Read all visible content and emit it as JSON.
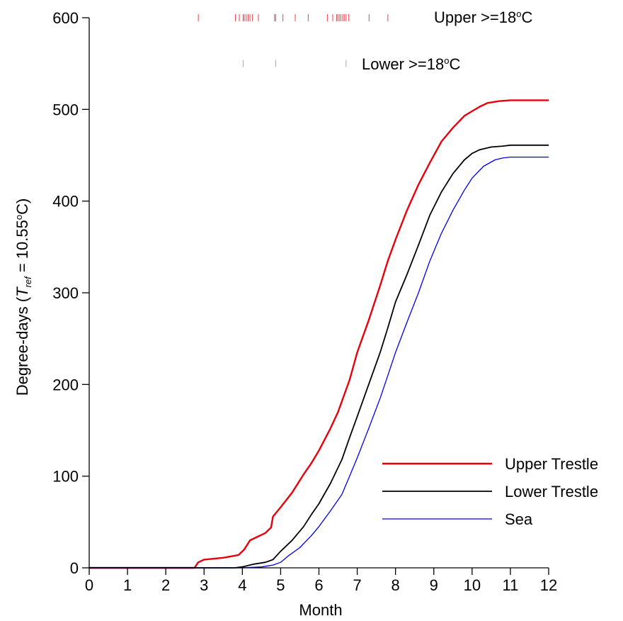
{
  "chart_data": {
    "type": "line",
    "xlabel": "Month",
    "ylabel_prefix": "Degree-days (",
    "ylabel_t": "T",
    "ylabel_sub": "ref",
    "ylabel_eq": " = 10.55",
    "ylabel_sup": "o",
    "ylabel_unit": "C)",
    "xlim": [
      0,
      12
    ],
    "ylim": [
      0,
      600
    ],
    "xticks": [
      "0",
      "1",
      "2",
      "3",
      "4",
      "5",
      "6",
      "7",
      "8",
      "9",
      "10",
      "11",
      "12"
    ],
    "yticks": [
      "0",
      "100",
      "200",
      "300",
      "400",
      "500",
      "600"
    ],
    "legend_position": "lower-right",
    "series": [
      {
        "name": "Upper Trestle",
        "color": "#e8000b",
        "x": [
          0,
          2.75,
          2.85,
          3.0,
          3.5,
          3.9,
          4.05,
          4.2,
          4.4,
          4.6,
          4.75,
          4.8,
          5.0,
          5.3,
          5.6,
          5.8,
          6.0,
          6.3,
          6.5,
          6.8,
          7.0,
          7.3,
          7.6,
          7.8,
          8.0,
          8.3,
          8.6,
          8.9,
          9.2,
          9.5,
          9.8,
          10.0,
          10.2,
          10.4,
          10.7,
          11.0,
          11.5,
          12.0
        ],
        "y": [
          0,
          0,
          6,
          9,
          11,
          14,
          20,
          30,
          34,
          38,
          44,
          56,
          66,
          82,
          102,
          114,
          128,
          152,
          170,
          205,
          235,
          270,
          308,
          335,
          358,
          390,
          418,
          442,
          465,
          480,
          493,
          498,
          503,
          507,
          509,
          510,
          510,
          510
        ]
      },
      {
        "name": "Lower Trestle",
        "color": "#000000",
        "x": [
          0,
          3.8,
          4.0,
          4.3,
          4.6,
          4.8,
          5.0,
          5.3,
          5.6,
          5.8,
          6.0,
          6.3,
          6.6,
          6.8,
          7.0,
          7.3,
          7.6,
          7.8,
          8.0,
          8.3,
          8.6,
          8.9,
          9.2,
          9.5,
          9.8,
          10.0,
          10.2,
          10.5,
          10.8,
          11.0,
          11.5,
          12.0
        ],
        "y": [
          0,
          0,
          1,
          4,
          6,
          9,
          18,
          30,
          45,
          58,
          70,
          92,
          118,
          142,
          165,
          200,
          235,
          262,
          290,
          320,
          352,
          385,
          410,
          430,
          445,
          452,
          456,
          459,
          460,
          461,
          461,
          461
        ]
      },
      {
        "name": "Sea",
        "color": "#0000ee",
        "x": [
          0,
          4.0,
          4.5,
          4.8,
          5.0,
          5.2,
          5.5,
          5.8,
          6.0,
          6.3,
          6.6,
          6.8,
          7.0,
          7.3,
          7.6,
          7.8,
          8.0,
          8.3,
          8.6,
          8.9,
          9.2,
          9.5,
          9.8,
          10.0,
          10.3,
          10.6,
          10.8,
          11.0,
          11.5,
          12.0
        ],
        "y": [
          0,
          0,
          1,
          3,
          6,
          13,
          22,
          35,
          45,
          62,
          80,
          100,
          120,
          152,
          185,
          210,
          235,
          268,
          300,
          335,
          365,
          390,
          412,
          425,
          438,
          445,
          447,
          448,
          448,
          448
        ]
      }
    ],
    "markers": [
      {
        "label": "Upper >=18",
        "label_sup": "o",
        "label_unit": "C",
        "color": "#e8000b",
        "y": 600,
        "events": [
          2.85,
          3.82,
          3.92,
          4.02,
          4.05,
          4.1,
          4.15,
          4.2,
          4.26,
          4.42,
          4.84,
          4.87,
          5.06,
          5.38,
          5.72,
          6.22,
          6.36,
          6.46,
          6.49,
          6.53,
          6.57,
          6.62,
          6.66,
          6.71,
          6.78,
          7.31,
          7.8
        ]
      },
      {
        "label": "Lower >=18",
        "label_sup": "o",
        "label_unit": "C",
        "color": "#000000",
        "y": 550,
        "events": [
          4.02,
          4.87,
          6.71
        ]
      }
    ]
  }
}
